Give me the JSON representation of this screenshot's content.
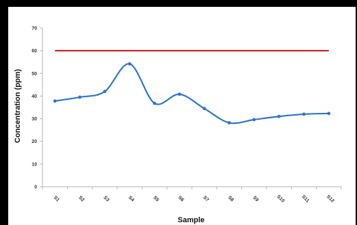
{
  "chart_data": {
    "type": "line",
    "title": "",
    "xlabel": "Sample",
    "ylabel": "Concentration (ppm)",
    "categories": [
      "S1",
      "S2",
      "S3",
      "S4",
      "S5",
      "S6",
      "S7",
      "S8",
      "S9",
      "S10",
      "S11",
      "S12"
    ],
    "ylim": [
      0,
      70
    ],
    "yticks": [
      0,
      10,
      20,
      30,
      40,
      50,
      60,
      70
    ],
    "grid": false,
    "legend": "none",
    "series": [
      {
        "values": [
          37.8,
          39.5,
          42.0,
          54.2,
          36.8,
          40.8,
          34.5,
          28.2,
          29.6,
          31.0,
          32.0,
          32.3
        ],
        "color": "#2e75c9",
        "smooth": true,
        "markers": true
      }
    ],
    "reference_lines": [
      {
        "y": 60,
        "color": "#c8282d"
      }
    ]
  }
}
